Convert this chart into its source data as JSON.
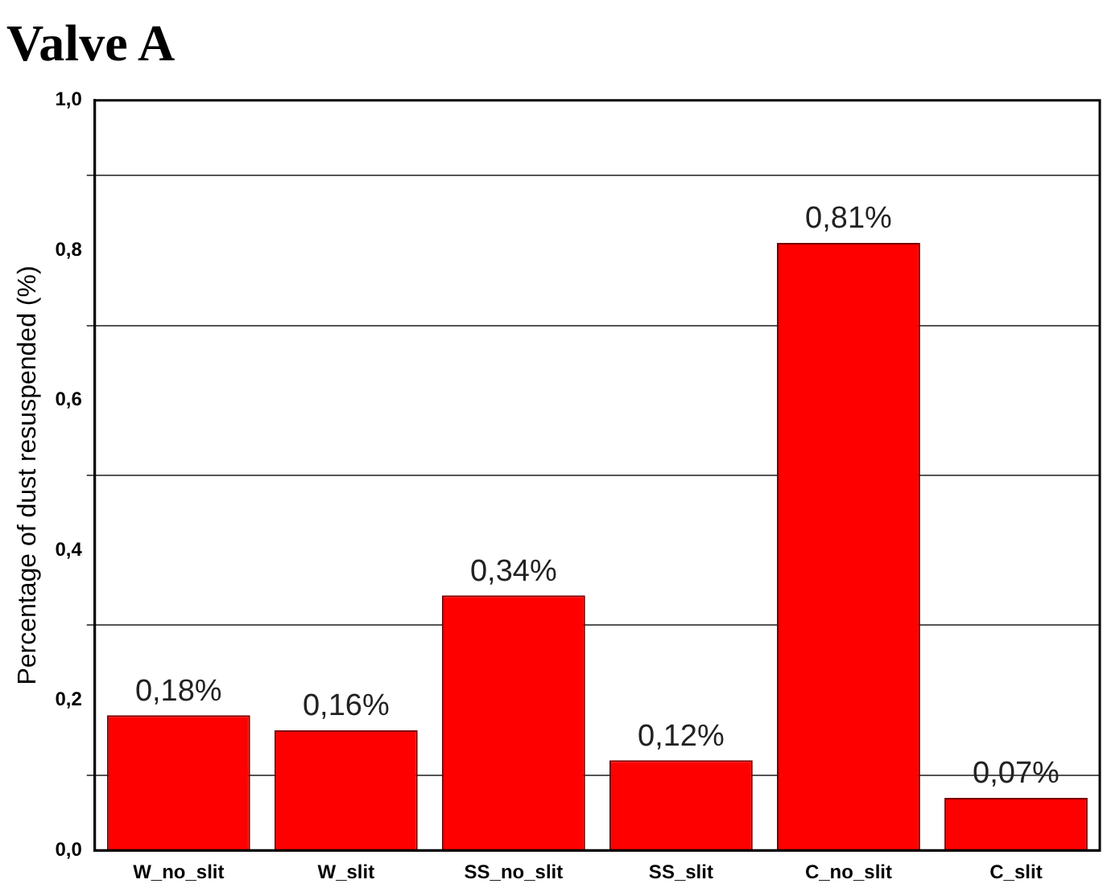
{
  "chart_data": {
    "type": "bar",
    "title": "Valve A",
    "ylabel": "Percentage of dust resuspended (%)",
    "categories": [
      "W_no_slit",
      "W_slit",
      "SS_no_slit",
      "SS_slit",
      "C_no_slit",
      "C_slit"
    ],
    "values": [
      0.18,
      0.16,
      0.34,
      0.12,
      0.81,
      0.07
    ],
    "value_labels": [
      "0,18%",
      "0,16%",
      "0,34%",
      "0,12%",
      "0,81%",
      "0,07%"
    ],
    "color": "#ff0000",
    "ylim": [
      0,
      1
    ],
    "yticks": [
      {
        "value": 0,
        "label": "0,0"
      },
      {
        "value": 0.1,
        "label": null
      },
      {
        "value": 0.2,
        "label": "0,2"
      },
      {
        "value": 0.3,
        "label": null
      },
      {
        "value": 0.4,
        "label": "0,4"
      },
      {
        "value": 0.5,
        "label": null
      },
      {
        "value": 0.6,
        "label": "0,6"
      },
      {
        "value": 0.7,
        "label": null
      },
      {
        "value": 0.8,
        "label": "0,8"
      },
      {
        "value": 0.9,
        "label": null
      },
      {
        "value": 1,
        "label": "1,0"
      }
    ],
    "grid": "y",
    "legend": false
  }
}
